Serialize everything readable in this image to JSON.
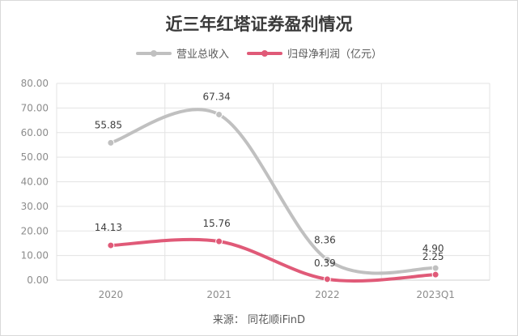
{
  "chart_data": {
    "type": "line",
    "title": "近三年红塔证券盈利情况",
    "categories": [
      "2020",
      "2021",
      "2022",
      "2023Q1"
    ],
    "series": [
      {
        "name": "营业总收入",
        "values": [
          55.85,
          67.34,
          8.36,
          4.9
        ],
        "labels": [
          "55.85",
          "67.34",
          "8.36",
          "4.90"
        ],
        "color": "#c0c0c0"
      },
      {
        "name": "归母净利润（亿元）",
        "values": [
          14.13,
          15.76,
          0.39,
          2.25
        ],
        "labels": [
          "14.13",
          "15.76",
          "0.39",
          "2.25"
        ],
        "color": "#e05a78"
      }
    ],
    "ylim": [
      0,
      80
    ],
    "yticks": [
      "0.00",
      "10.00",
      "20.00",
      "30.00",
      "40.00",
      "50.00",
      "60.00",
      "70.00",
      "80.00"
    ],
    "grid": true,
    "legend_position": "top"
  },
  "source_text": "来源：  同花顺iFinD"
}
